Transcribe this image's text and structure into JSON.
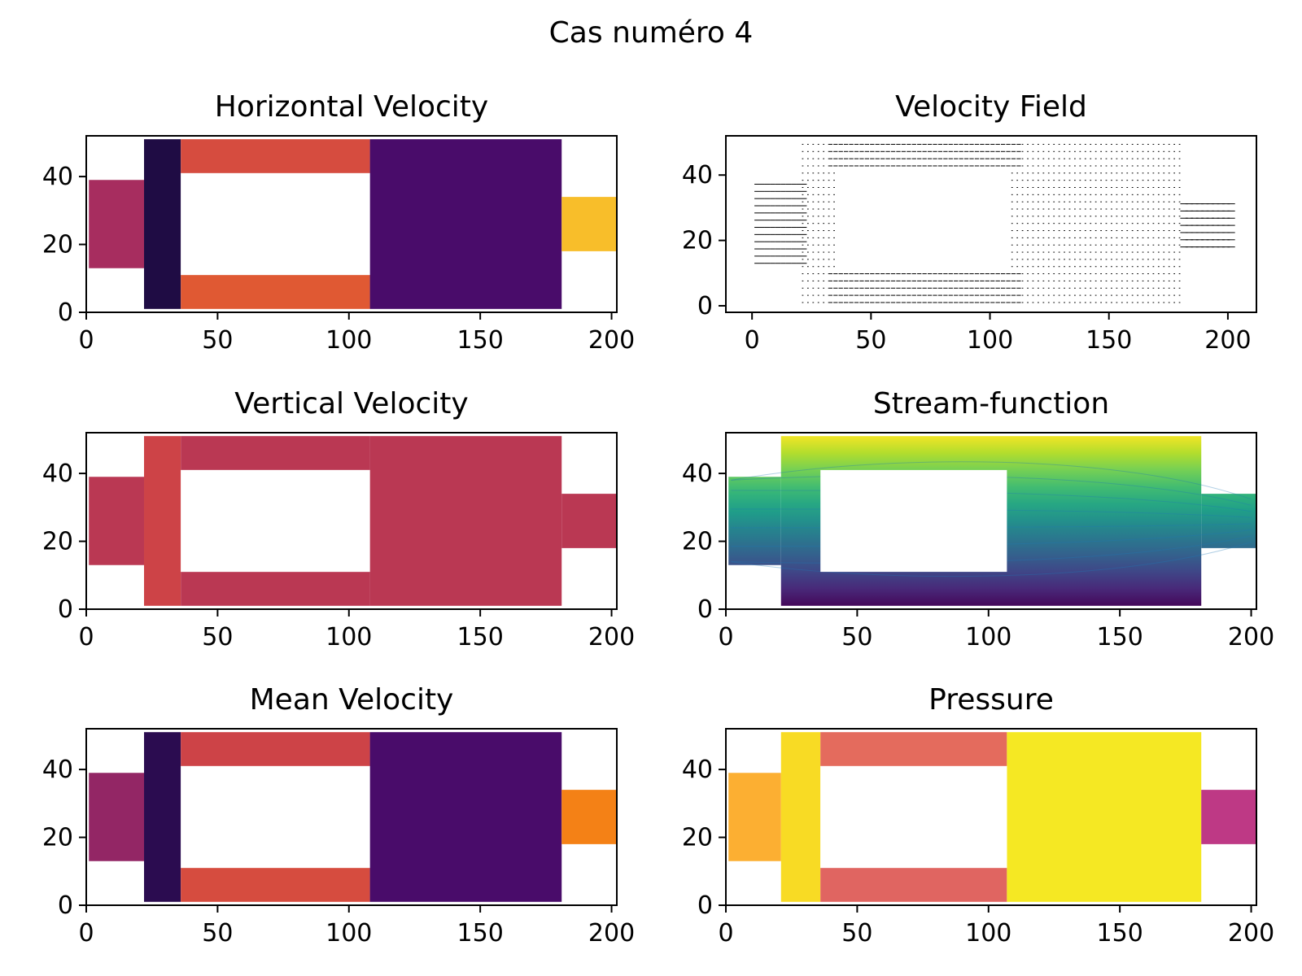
{
  "figure": {
    "suptitle": "Cas numéro 4"
  },
  "chart_data": [
    {
      "type": "heatmap",
      "title": "Horizontal Velocity",
      "xlim": [
        0,
        202
      ],
      "ylim": [
        0,
        52
      ],
      "xticks": [
        "0",
        "50",
        "100",
        "150",
        "200"
      ],
      "yticks": [
        "0",
        "20",
        "40"
      ],
      "colormap": "inferno",
      "regions": [
        {
          "name": "inlet",
          "x": [
            1,
            22
          ],
          "y": [
            13,
            39
          ],
          "level": 0.45
        },
        {
          "name": "chamber-left",
          "x": [
            22,
            36
          ],
          "y": [
            1,
            51
          ],
          "level": 0.12
        },
        {
          "name": "top-channel",
          "x": [
            36,
            108
          ],
          "y": [
            41,
            51
          ],
          "level": 0.58
        },
        {
          "name": "bottom-channel",
          "x": [
            36,
            108
          ],
          "y": [
            1,
            11
          ],
          "level": 0.62
        },
        {
          "name": "chamber-right",
          "x": [
            108,
            181
          ],
          "y": [
            1,
            51
          ],
          "level": 0.22
        },
        {
          "name": "outlet",
          "x": [
            181,
            202
          ],
          "y": [
            18,
            34
          ],
          "level": 0.85
        }
      ],
      "obstacle": {
        "x": [
          36,
          108
        ],
        "y": [
          11,
          41
        ]
      }
    },
    {
      "type": "quiver",
      "title": "Velocity Field",
      "xlim": [
        -11,
        212
      ],
      "ylim": [
        -2,
        52
      ],
      "xticks": [
        "0",
        "50",
        "100",
        "150",
        "200"
      ],
      "yticks": [
        "0",
        "20",
        "40"
      ],
      "color": "#000000",
      "regions": [
        {
          "name": "inlet",
          "x": [
            1,
            21
          ],
          "y": [
            13,
            38
          ]
        },
        {
          "name": "chamber",
          "x": [
            21,
            180
          ],
          "y": [
            1,
            50
          ]
        },
        {
          "name": "outlet",
          "x": [
            180,
            201
          ],
          "y": [
            18,
            33
          ]
        }
      ],
      "obstacle": {
        "x": [
          35,
          108
        ],
        "y": [
          10,
          41
        ]
      }
    },
    {
      "type": "heatmap",
      "title": "Vertical Velocity",
      "xlim": [
        0,
        202
      ],
      "ylim": [
        0,
        52
      ],
      "xticks": [
        "0",
        "50",
        "100",
        "150",
        "200"
      ],
      "yticks": [
        "0",
        "20",
        "40"
      ],
      "colormap": "inferno",
      "regions": [
        {
          "name": "inlet",
          "x": [
            1,
            22
          ],
          "y": [
            13,
            39
          ],
          "level": 0.5
        },
        {
          "name": "chamber-left",
          "x": [
            22,
            36
          ],
          "y": [
            1,
            51
          ],
          "level": 0.55
        },
        {
          "name": "top-channel",
          "x": [
            36,
            108
          ],
          "y": [
            41,
            51
          ],
          "level": 0.5
        },
        {
          "name": "bottom-channel",
          "x": [
            36,
            108
          ],
          "y": [
            1,
            11
          ],
          "level": 0.5
        },
        {
          "name": "chamber-right",
          "x": [
            108,
            181
          ],
          "y": [
            1,
            51
          ],
          "level": 0.5
        },
        {
          "name": "outlet",
          "x": [
            181,
            202
          ],
          "y": [
            18,
            34
          ],
          "level": 0.5
        }
      ],
      "obstacle": {
        "x": [
          36,
          108
        ],
        "y": [
          11,
          41
        ]
      }
    },
    {
      "type": "contour",
      "title": "Stream-function",
      "xlim": [
        0,
        202
      ],
      "ylim": [
        0,
        52
      ],
      "xticks": [
        "0",
        "50",
        "100",
        "150",
        "200"
      ],
      "yticks": [
        "0",
        "20",
        "40"
      ],
      "colormap": "viridis",
      "regions": [
        {
          "name": "inlet",
          "x": [
            1,
            21
          ],
          "y": [
            13,
            39
          ]
        },
        {
          "name": "chamber",
          "x": [
            21,
            181
          ],
          "y": [
            1,
            51
          ]
        },
        {
          "name": "outlet",
          "x": [
            181,
            202
          ],
          "y": [
            18,
            34
          ]
        }
      ],
      "obstacle": {
        "x": [
          36,
          107
        ],
        "y": [
          11,
          41
        ]
      },
      "streamline_color": "#1f77b4"
    },
    {
      "type": "heatmap",
      "title": "Mean Velocity",
      "xlim": [
        0,
        202
      ],
      "ylim": [
        0,
        52
      ],
      "xticks": [
        "0",
        "50",
        "100",
        "150",
        "200"
      ],
      "yticks": [
        "0",
        "20",
        "40"
      ],
      "colormap": "inferno",
      "regions": [
        {
          "name": "inlet",
          "x": [
            1,
            22
          ],
          "y": [
            13,
            39
          ],
          "level": 0.4
        },
        {
          "name": "chamber-left",
          "x": [
            22,
            36
          ],
          "y": [
            1,
            51
          ],
          "level": 0.15
        },
        {
          "name": "top-channel",
          "x": [
            36,
            108
          ],
          "y": [
            41,
            51
          ],
          "level": 0.55
        },
        {
          "name": "bottom-channel",
          "x": [
            36,
            108
          ],
          "y": [
            1,
            11
          ],
          "level": 0.58
        },
        {
          "name": "chamber-right",
          "x": [
            108,
            181
          ],
          "y": [
            1,
            51
          ],
          "level": 0.22
        },
        {
          "name": "outlet",
          "x": [
            181,
            202
          ],
          "y": [
            18,
            34
          ],
          "level": 0.72
        }
      ],
      "obstacle": {
        "x": [
          36,
          108
        ],
        "y": [
          11,
          41
        ]
      }
    },
    {
      "type": "heatmap",
      "title": "Pressure",
      "xlim": [
        0,
        202
      ],
      "ylim": [
        0,
        52
      ],
      "xticks": [
        "0",
        "50",
        "100",
        "150",
        "200"
      ],
      "yticks": [
        "0",
        "20",
        "40"
      ],
      "colormap": "plasma",
      "regions": [
        {
          "name": "inlet",
          "x": [
            1,
            21
          ],
          "y": [
            13,
            39
          ],
          "level": 0.82
        },
        {
          "name": "chamber-left",
          "x": [
            21,
            36
          ],
          "y": [
            1,
            51
          ],
          "level": 0.93
        },
        {
          "name": "top-channel",
          "x": [
            36,
            107
          ],
          "y": [
            41,
            51
          ],
          "level": 0.62
        },
        {
          "name": "bottom-channel",
          "x": [
            36,
            107
          ],
          "y": [
            1,
            11
          ],
          "level": 0.6
        },
        {
          "name": "chamber-right",
          "x": [
            107,
            181
          ],
          "y": [
            1,
            51
          ],
          "level": 0.96
        },
        {
          "name": "outlet",
          "x": [
            181,
            202
          ],
          "y": [
            18,
            34
          ],
          "level": 0.45
        }
      ],
      "obstacle": {
        "x": [
          36,
          107
        ],
        "y": [
          11,
          41
        ]
      }
    }
  ]
}
